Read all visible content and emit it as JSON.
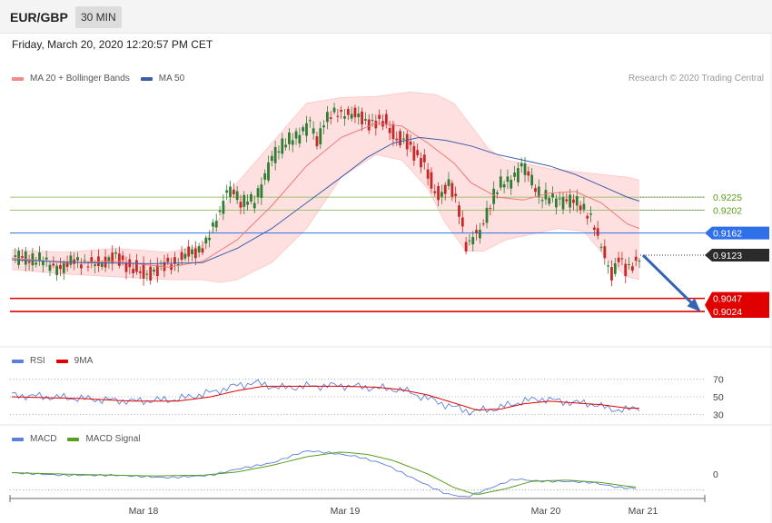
{
  "header": {
    "symbol": "EUR/GBP",
    "timeframe": "30 MIN"
  },
  "datetime": "Friday, March 20, 2020 12:20:57 PM CET",
  "credit": "Research © 2020 Trading Central",
  "colors": {
    "bull": "#2e7d32",
    "bear": "#c62828",
    "bollinger_fill": "#ffd6d6",
    "ma20": "#f07878",
    "ma50": "#3a5fa8",
    "rsi": "#5b7fe0",
    "rsi_ma": "#e00000",
    "macd": "#5b7fe0",
    "macd_signal": "#5a9e1e",
    "resistance": "#9bc46b",
    "pivot": "#2f6fe8",
    "support": "#e00000",
    "arrow": "#3563b0"
  },
  "legends": {
    "price": [
      {
        "label": "MA 20 + Bollinger Bands",
        "color": "#f58a8a"
      },
      {
        "label": "MA 50",
        "color": "#3a5fa8"
      }
    ],
    "rsi": [
      {
        "label": "RSI",
        "color": "#5b7fe0"
      },
      {
        "label": "9MA",
        "color": "#e00000"
      }
    ],
    "macd": [
      {
        "label": "MACD",
        "color": "#5b7fe0"
      },
      {
        "label": "MACD Signal",
        "color": "#5a9e1e"
      }
    ]
  },
  "chart_data": {
    "type": "candlestick",
    "x_labels": [
      "Mar 18",
      "Mar 19",
      "Mar 20",
      "Mar 21"
    ],
    "price_range": [
      0.8965,
      0.942
    ],
    "last_price": "0.9123",
    "levels": [
      {
        "value": 0.9225,
        "label": "0.9225",
        "kind": "resistance"
      },
      {
        "value": 0.9202,
        "label": "0.9202",
        "kind": "resistance"
      },
      {
        "value": 0.9162,
        "label": "0.9162",
        "kind": "pivot"
      },
      {
        "value": 0.9047,
        "label": "0.9047",
        "kind": "support"
      },
      {
        "value": 0.9024,
        "label": "0.9024",
        "kind": "support"
      }
    ],
    "forecast_arrow": {
      "from": 0.9123,
      "to": 0.9024
    },
    "close_path": [
      [
        0,
        0.9115
      ],
      [
        8,
        0.9118
      ],
      [
        16,
        0.9112
      ],
      [
        24,
        0.9105
      ],
      [
        30,
        0.9098
      ],
      [
        36,
        0.9118
      ],
      [
        44,
        0.9105
      ],
      [
        52,
        0.9112
      ],
      [
        60,
        0.912
      ],
      [
        66,
        0.911
      ],
      [
        72,
        0.9095
      ],
      [
        76,
        0.909
      ],
      [
        82,
        0.9098
      ],
      [
        88,
        0.9105
      ],
      [
        94,
        0.9112
      ],
      [
        100,
        0.9122
      ],
      [
        106,
        0.913
      ],
      [
        112,
        0.9145
      ],
      [
        116,
        0.917
      ],
      [
        120,
        0.92
      ],
      [
        124,
        0.924
      ],
      [
        128,
        0.923
      ],
      [
        132,
        0.921
      ],
      [
        136,
        0.9225
      ],
      [
        140,
        0.9215
      ],
      [
        144,
        0.924
      ],
      [
        150,
        0.93
      ],
      [
        156,
        0.931
      ],
      [
        162,
        0.933
      ],
      [
        168,
        0.934
      ],
      [
        172,
        0.9355
      ],
      [
        176,
        0.932
      ],
      [
        180,
        0.936
      ],
      [
        186,
        0.937
      ],
      [
        192,
        0.9375
      ],
      [
        198,
        0.9368
      ],
      [
        204,
        0.936
      ],
      [
        210,
        0.9358
      ],
      [
        216,
        0.9355
      ],
      [
        222,
        0.933
      ],
      [
        228,
        0.932
      ],
      [
        234,
        0.93
      ],
      [
        238,
        0.9285
      ],
      [
        242,
        0.924
      ],
      [
        246,
        0.923
      ],
      [
        252,
        0.925
      ],
      [
        258,
        0.92
      ],
      [
        262,
        0.914
      ],
      [
        266,
        0.9155
      ],
      [
        270,
        0.916
      ],
      [
        274,
        0.92
      ],
      [
        278,
        0.923
      ],
      [
        282,
        0.9245
      ],
      [
        286,
        0.925
      ],
      [
        290,
        0.9265
      ],
      [
        294,
        0.928
      ],
      [
        298,
        0.926
      ],
      [
        302,
        0.924
      ],
      [
        306,
        0.9225
      ],
      [
        312,
        0.9218
      ],
      [
        318,
        0.9222
      ],
      [
        324,
        0.9215
      ],
      [
        330,
        0.9205
      ],
      [
        334,
        0.919
      ],
      [
        338,
        0.915
      ],
      [
        342,
        0.912
      ],
      [
        346,
        0.909
      ],
      [
        350,
        0.912
      ],
      [
        354,
        0.9095
      ],
      [
        358,
        0.911
      ],
      [
        362,
        0.9123
      ]
    ],
    "ma20": [
      [
        0,
        0.9118
      ],
      [
        30,
        0.911
      ],
      [
        60,
        0.9112
      ],
      [
        90,
        0.9102
      ],
      [
        110,
        0.9112
      ],
      [
        130,
        0.915
      ],
      [
        150,
        0.921
      ],
      [
        170,
        0.928
      ],
      [
        190,
        0.933
      ],
      [
        210,
        0.9355
      ],
      [
        225,
        0.935
      ],
      [
        240,
        0.932
      ],
      [
        255,
        0.9285
      ],
      [
        265,
        0.925
      ],
      [
        280,
        0.9225
      ],
      [
        295,
        0.922
      ],
      [
        310,
        0.9232
      ],
      [
        325,
        0.9235
      ],
      [
        340,
        0.9215
      ],
      [
        355,
        0.9178
      ],
      [
        362,
        0.917
      ]
    ],
    "bb_upper": [
      [
        0,
        0.9132
      ],
      [
        30,
        0.9128
      ],
      [
        60,
        0.9135
      ],
      [
        90,
        0.9128
      ],
      [
        110,
        0.914
      ],
      [
        120,
        0.919
      ],
      [
        130,
        0.925
      ],
      [
        150,
        0.932
      ],
      [
        170,
        0.939
      ],
      [
        190,
        0.94
      ],
      [
        210,
        0.9402
      ],
      [
        230,
        0.941
      ],
      [
        245,
        0.9405
      ],
      [
        255,
        0.939
      ],
      [
        265,
        0.935
      ],
      [
        275,
        0.931
      ],
      [
        285,
        0.929
      ],
      [
        295,
        0.9285
      ],
      [
        310,
        0.9275
      ],
      [
        325,
        0.927
      ],
      [
        340,
        0.9265
      ],
      [
        355,
        0.926
      ],
      [
        362,
        0.9255
      ]
    ],
    "bb_lower": [
      [
        0,
        0.9098
      ],
      [
        30,
        0.909
      ],
      [
        60,
        0.9085
      ],
      [
        90,
        0.908
      ],
      [
        110,
        0.908
      ],
      [
        120,
        0.9075
      ],
      [
        130,
        0.908
      ],
      [
        150,
        0.911
      ],
      [
        170,
        0.917
      ],
      [
        190,
        0.926
      ],
      [
        210,
        0.93
      ],
      [
        225,
        0.929
      ],
      [
        240,
        0.924
      ],
      [
        250,
        0.918
      ],
      [
        262,
        0.913
      ],
      [
        272,
        0.913
      ],
      [
        285,
        0.915
      ],
      [
        300,
        0.916
      ],
      [
        315,
        0.917
      ],
      [
        330,
        0.9165
      ],
      [
        345,
        0.911
      ],
      [
        355,
        0.9085
      ],
      [
        362,
        0.908
      ]
    ],
    "ma50": [
      [
        0,
        0.9115
      ],
      [
        40,
        0.911
      ],
      [
        80,
        0.9108
      ],
      [
        110,
        0.911
      ],
      [
        130,
        0.9135
      ],
      [
        150,
        0.917
      ],
      [
        170,
        0.9215
      ],
      [
        190,
        0.926
      ],
      [
        205,
        0.9295
      ],
      [
        220,
        0.932
      ],
      [
        235,
        0.933
      ],
      [
        250,
        0.9325
      ],
      [
        265,
        0.9315
      ],
      [
        280,
        0.93
      ],
      [
        295,
        0.929
      ],
      [
        310,
        0.928
      ],
      [
        325,
        0.9265
      ],
      [
        340,
        0.9245
      ],
      [
        355,
        0.9225
      ],
      [
        362,
        0.9218
      ]
    ],
    "rsi": {
      "levels": [
        70,
        50,
        30
      ],
      "range": [
        20,
        80
      ]
    },
    "macd": {
      "zero_label": "0"
    }
  }
}
